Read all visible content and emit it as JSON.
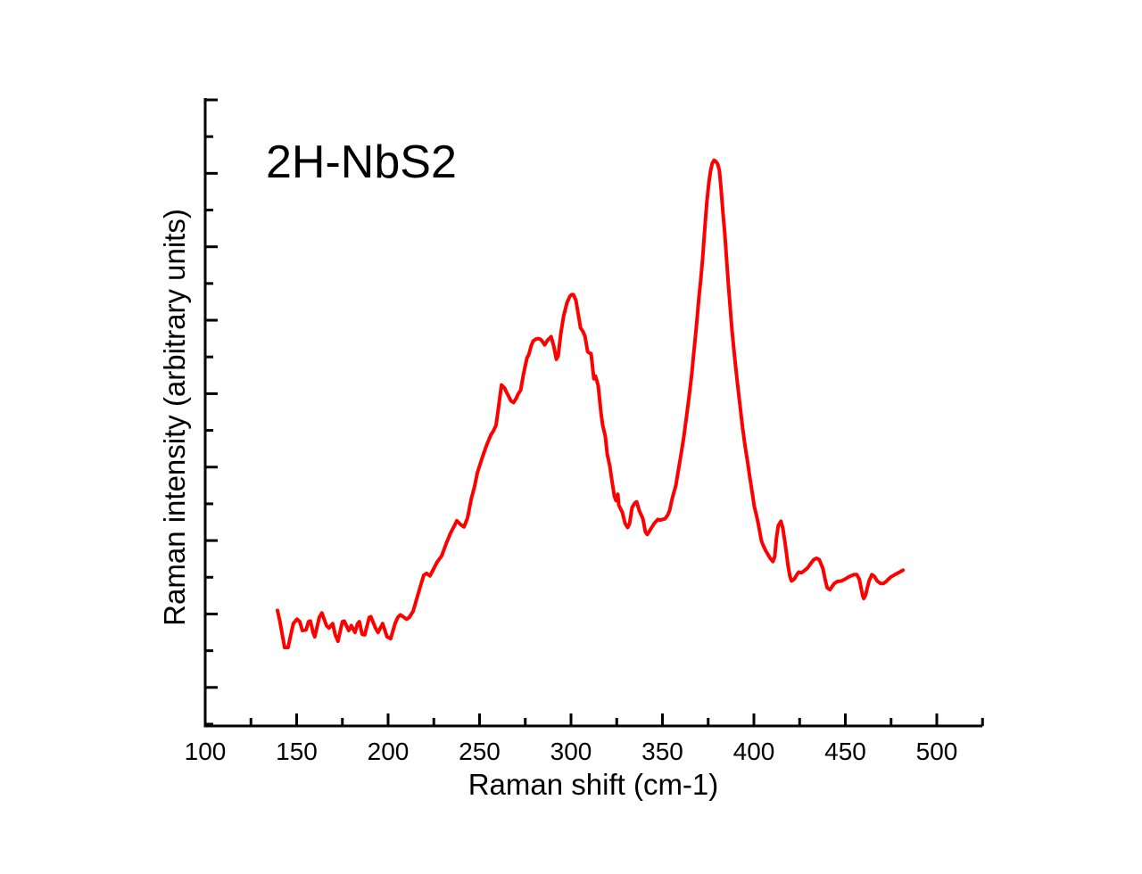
{
  "chart_data": {
    "type": "line",
    "title": "",
    "annotation": "2H-NbS2",
    "xlabel": "Raman shift (cm-1)",
    "ylabel": "Raman intensity (arbitrary units)",
    "xlim": [
      100,
      525
    ],
    "ylim": [
      0,
      100
    ],
    "y_units": "arbitrary (y axis unlabeled, ticks only)",
    "grid": false,
    "legend": null,
    "x_major_ticks": [
      100,
      150,
      200,
      250,
      300,
      350,
      400,
      450,
      500
    ],
    "x_minor_ticks": [
      125,
      175,
      225,
      275,
      325,
      375,
      425,
      475,
      525
    ],
    "x_tick_labels": [
      "100",
      "150",
      "200",
      "250",
      "300",
      "350",
      "400",
      "450",
      "500"
    ],
    "y_major_tick_count": 9,
    "y_minor_tick_count": 9,
    "axis_color": "#000000",
    "series": [
      {
        "name": "2H-NbS2 Raman spectrum",
        "color": "#ff0000",
        "line_width": 4,
        "points": [
          [
            139.5,
            18.4
          ],
          [
            140.9,
            16.6
          ],
          [
            143.4,
            12.5
          ],
          [
            145.3,
            12.5
          ],
          [
            146.8,
            14.5
          ],
          [
            148.2,
            16.3
          ],
          [
            150.2,
            17.0
          ],
          [
            151.7,
            16.6
          ],
          [
            153.1,
            15.2
          ],
          [
            155.1,
            15.3
          ],
          [
            156.5,
            16.6
          ],
          [
            157.5,
            16.7
          ],
          [
            159.0,
            14.9
          ],
          [
            159.9,
            14.2
          ],
          [
            162.4,
            17.3
          ],
          [
            163.8,
            18.0
          ],
          [
            166.3,
            16.0
          ],
          [
            167.7,
            15.6
          ],
          [
            169.7,
            16.3
          ],
          [
            171.1,
            14.5
          ],
          [
            172.6,
            13.5
          ],
          [
            175.0,
            16.6
          ],
          [
            176.0,
            16.7
          ],
          [
            178.5,
            15.2
          ],
          [
            179.9,
            16.0
          ],
          [
            181.9,
            14.9
          ],
          [
            183.3,
            16.3
          ],
          [
            184.3,
            16.6
          ],
          [
            185.8,
            14.6
          ],
          [
            187.2,
            14.5
          ],
          [
            189.7,
            17.3
          ],
          [
            190.6,
            17.4
          ],
          [
            193.1,
            15.6
          ],
          [
            194.5,
            14.9
          ],
          [
            196.5,
            16.0
          ],
          [
            197.0,
            16.3
          ],
          [
            199.4,
            14.2
          ],
          [
            201.4,
            13.9
          ],
          [
            203.8,
            16.3
          ],
          [
            205.3,
            17.3
          ],
          [
            206.7,
            17.7
          ],
          [
            208.7,
            17.3
          ],
          [
            210.1,
            17.0
          ],
          [
            211.6,
            17.3
          ],
          [
            213.7,
            18.3
          ],
          [
            216.1,
            20.7
          ],
          [
            218.0,
            22.6
          ],
          [
            219.5,
            24.0
          ],
          [
            221.0,
            24.3
          ],
          [
            222.9,
            23.9
          ],
          [
            224.9,
            25.0
          ],
          [
            226.8,
            26.1
          ],
          [
            229.3,
            27.1
          ],
          [
            231.7,
            29.0
          ],
          [
            234.1,
            30.7
          ],
          [
            236.1,
            31.8
          ],
          [
            237.6,
            32.7
          ],
          [
            239.5,
            32.1
          ],
          [
            241.5,
            31.7
          ],
          [
            243.4,
            33.1
          ],
          [
            245.4,
            36.1
          ],
          [
            247.3,
            38.2
          ],
          [
            248.8,
            40.3
          ],
          [
            251.2,
            42.5
          ],
          [
            253.7,
            44.6
          ],
          [
            256.1,
            46.3
          ],
          [
            257.6,
            47.0
          ],
          [
            259.0,
            47.9
          ],
          [
            260.5,
            51.0
          ],
          [
            262.0,
            54.3
          ],
          [
            263.7,
            53.8
          ],
          [
            264.7,
            53.2
          ],
          [
            267.1,
            51.8
          ],
          [
            268.6,
            51.5
          ],
          [
            270.1,
            52.2
          ],
          [
            271.0,
            52.8
          ],
          [
            272.5,
            53.5
          ],
          [
            274.0,
            56.0
          ],
          [
            275.9,
            58.6
          ],
          [
            276.9,
            59.1
          ],
          [
            278.3,
            60.6
          ],
          [
            279.3,
            61.3
          ],
          [
            280.8,
            61.6
          ],
          [
            281.8,
            61.7
          ],
          [
            283.2,
            61.6
          ],
          [
            284.2,
            61.3
          ],
          [
            285.6,
            60.7
          ],
          [
            287.1,
            61.4
          ],
          [
            289.1,
            62.0
          ],
          [
            290.5,
            60.6
          ],
          [
            292.0,
            58.4
          ],
          [
            293.0,
            58.9
          ],
          [
            294.4,
            62.4
          ],
          [
            295.9,
            65.2
          ],
          [
            297.8,
            67.4
          ],
          [
            299.3,
            68.4
          ],
          [
            300.3,
            68.7
          ],
          [
            301.3,
            68.7
          ],
          [
            302.7,
            67.8
          ],
          [
            304.2,
            65.2
          ],
          [
            305.2,
            63.4
          ],
          [
            306.6,
            62.8
          ],
          [
            307.6,
            62.1
          ],
          [
            309.1,
            59.6
          ],
          [
            310.0,
            59.4
          ],
          [
            311.0,
            59.3
          ],
          [
            312.5,
            55.3
          ],
          [
            313.4,
            55.7
          ],
          [
            314.9,
            54.2
          ],
          [
            316.4,
            49.9
          ],
          [
            317.3,
            47.9
          ],
          [
            318.8,
            46.1
          ],
          [
            319.8,
            43.3
          ],
          [
            321.2,
            41.4
          ],
          [
            322.2,
            39.4
          ],
          [
            323.7,
            36.6
          ],
          [
            324.6,
            35.9
          ],
          [
            325.6,
            36.9
          ],
          [
            326.1,
            35.2
          ],
          [
            328.1,
            34.0
          ],
          [
            329.5,
            32.3
          ],
          [
            331.0,
            31.6
          ],
          [
            332.0,
            32.2
          ],
          [
            333.4,
            34.8
          ],
          [
            334.9,
            35.5
          ],
          [
            335.9,
            35.7
          ],
          [
            337.3,
            34.3
          ],
          [
            339.3,
            33.0
          ],
          [
            340.7,
            30.9
          ],
          [
            341.7,
            30.5
          ],
          [
            343.2,
            31.2
          ],
          [
            344.1,
            31.6
          ],
          [
            345.6,
            32.3
          ],
          [
            347.5,
            32.9
          ],
          [
            349.0,
            32.8
          ],
          [
            350.0,
            32.9
          ],
          [
            351.4,
            33.0
          ],
          [
            352.9,
            33.6
          ],
          [
            353.9,
            34.3
          ],
          [
            355.3,
            36.2
          ],
          [
            357.3,
            38.3
          ],
          [
            358.7,
            40.7
          ],
          [
            360.2,
            43.3
          ],
          [
            361.7,
            46.1
          ],
          [
            363.1,
            49.2
          ],
          [
            364.6,
            52.5
          ],
          [
            366.0,
            56.0
          ],
          [
            367.0,
            59.1
          ],
          [
            368.5,
            63.4
          ],
          [
            369.9,
            68.1
          ],
          [
            370.9,
            70.9
          ],
          [
            371.9,
            74.2
          ],
          [
            373.3,
            79.9
          ],
          [
            374.3,
            83.5
          ],
          [
            375.3,
            86.4
          ],
          [
            376.3,
            88.4
          ],
          [
            377.2,
            89.6
          ],
          [
            378.2,
            90.1
          ],
          [
            379.2,
            89.9
          ],
          [
            380.2,
            89.5
          ],
          [
            381.1,
            88.5
          ],
          [
            382.1,
            85.4
          ],
          [
            383.1,
            81.6
          ],
          [
            384.1,
            78.4
          ],
          [
            385.0,
            74.5
          ],
          [
            386.0,
            70.5
          ],
          [
            387.0,
            66.7
          ],
          [
            388.0,
            63.1
          ],
          [
            389.4,
            58.9
          ],
          [
            390.9,
            54.9
          ],
          [
            392.4,
            51.1
          ],
          [
            393.8,
            47.5
          ],
          [
            395.3,
            44.3
          ],
          [
            396.7,
            41.8
          ],
          [
            397.7,
            39.7
          ],
          [
            399.2,
            36.9
          ],
          [
            400.2,
            35.0
          ],
          [
            401.6,
            33.3
          ],
          [
            402.6,
            31.9
          ],
          [
            404.1,
            29.5
          ],
          [
            405.0,
            28.8
          ],
          [
            406.5,
            27.9
          ],
          [
            407.5,
            27.4
          ],
          [
            408.9,
            26.7
          ],
          [
            410.4,
            26.2
          ],
          [
            411.4,
            27.0
          ],
          [
            412.3,
            29.8
          ],
          [
            413.3,
            31.9
          ],
          [
            414.8,
            32.6
          ],
          [
            415.8,
            31.5
          ],
          [
            417.2,
            28.8
          ],
          [
            418.7,
            25.5
          ],
          [
            419.7,
            23.8
          ],
          [
            420.6,
            23.1
          ],
          [
            422.1,
            23.4
          ],
          [
            423.5,
            24.1
          ],
          [
            424.5,
            24.5
          ],
          [
            426.0,
            24.4
          ],
          [
            427.9,
            24.8
          ],
          [
            429.4,
            25.2
          ],
          [
            430.9,
            25.8
          ],
          [
            432.8,
            26.5
          ],
          [
            434.3,
            26.7
          ],
          [
            435.7,
            26.5
          ],
          [
            437.7,
            25.1
          ],
          [
            439.1,
            23.1
          ],
          [
            440.1,
            22.0
          ],
          [
            441.6,
            21.7
          ],
          [
            443.0,
            22.3
          ],
          [
            444.0,
            22.7
          ],
          [
            445.5,
            23.0
          ],
          [
            447.9,
            23.1
          ],
          [
            449.9,
            23.4
          ],
          [
            452.3,
            23.8
          ],
          [
            454.7,
            24.1
          ],
          [
            456.2,
            24.1
          ],
          [
            457.6,
            23.4
          ],
          [
            458.6,
            22.0
          ],
          [
            459.6,
            20.6
          ],
          [
            460.1,
            20.3
          ],
          [
            461.1,
            20.9
          ],
          [
            462.0,
            22.0
          ],
          [
            463.0,
            23.1
          ],
          [
            464.5,
            24.1
          ],
          [
            465.9,
            23.8
          ],
          [
            467.4,
            23.1
          ],
          [
            469.3,
            22.7
          ],
          [
            470.8,
            22.7
          ],
          [
            472.3,
            23.0
          ],
          [
            474.7,
            23.7
          ],
          [
            477.1,
            24.1
          ],
          [
            479.6,
            24.5
          ],
          [
            481.5,
            24.8
          ]
        ]
      }
    ]
  }
}
